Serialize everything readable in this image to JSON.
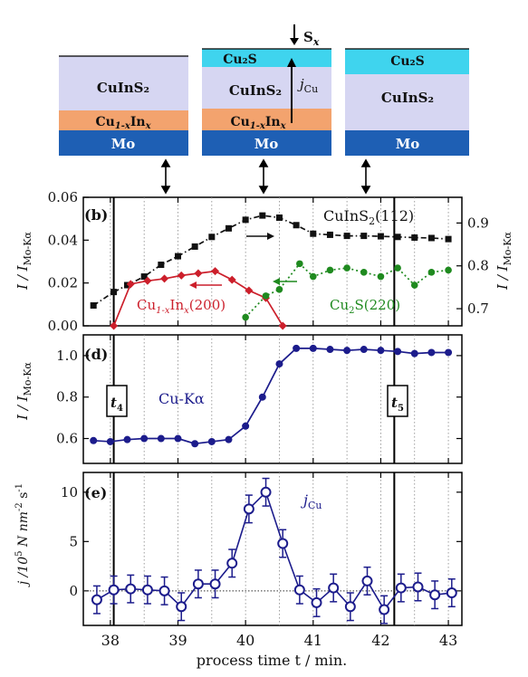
{
  "colors": {
    "cis_bg": "#d6d6f2",
    "cuin_bg": "#f3a36e",
    "cu2s_bg": "#3fd4ee",
    "mo_bg": "#1e5fb4",
    "cis_series": "#111111",
    "cuin_series": "#cc1f2b",
    "cu2s_series": "#1f8a1f",
    "cuka_series": "#1c1c8c",
    "jcu_series": "#1c1c8c",
    "event_line": "#000000",
    "grid": "#888888"
  },
  "schematic": {
    "stack1": {
      "cis": "CuInS₂",
      "cuin_pre": "Cu",
      "cuin_sub": "1-x",
      "cuin_mid": "In",
      "cuin_sub2": "x",
      "mo": "Mo"
    },
    "stack2": {
      "cu2s": "Cu₂S",
      "cis": "CuInS₂",
      "cuin_pre": "Cu",
      "cuin_sub": "1-x",
      "cuin_mid": "In",
      "cuin_sub2": "x",
      "mo": "Mo",
      "sx_pre": "S",
      "sx_sub": "x",
      "jcu_pre": "j",
      "jcu_sub": "Cu"
    },
    "stack3": {
      "cu2s": "Cu₂S",
      "cis": "CuInS₂",
      "mo": "Mo"
    }
  },
  "events": {
    "t4_pre": "t",
    "t4_sub": "4",
    "t5_pre": "t",
    "t5_sub": "5"
  },
  "chart_data": [
    {
      "panel": "b",
      "panel_label": "(b)",
      "type": "line",
      "ylabel_pre": "I / I",
      "ylabel_sub": "Mo-Kα",
      "ylabel_right_pre": "I / I",
      "ylabel_right_sub": "Mo-Kα",
      "xlim": [
        37.6,
        43.2
      ],
      "ylim_left": [
        0,
        0.06
      ],
      "yticks_left": [
        "0.00",
        "0.02",
        "0.04",
        "0.06"
      ],
      "ylim_right": [
        0.66,
        0.96
      ],
      "yticks_right": [
        "0.7",
        "0.8",
        "0.9"
      ],
      "series": [
        {
          "name": "CuInS₂(112)",
          "axis": "left",
          "style": "dash-dot",
          "x": [
            37.75,
            38.05,
            38.25,
            38.5,
            38.75,
            39.0,
            39.25,
            39.5,
            39.75,
            40.0,
            40.25,
            40.5,
            40.75,
            41.0,
            41.25,
            41.5,
            41.75,
            42.0,
            42.25,
            42.5,
            42.75,
            43.0
          ],
          "y": [
            0.0095,
            0.0158,
            0.019,
            0.023,
            0.0285,
            0.0325,
            0.037,
            0.0415,
            0.0455,
            0.0495,
            0.0515,
            0.0505,
            0.047,
            0.043,
            0.0425,
            0.042,
            0.042,
            0.0418,
            0.0415,
            0.0412,
            0.041,
            0.0405
          ]
        },
        {
          "name": "Cu1-xInx(200)",
          "axis": "left",
          "style": "solid",
          "x": [
            38.05,
            38.3,
            38.55,
            38.8,
            39.05,
            39.3,
            39.55,
            39.8,
            40.05,
            40.3,
            40.55
          ],
          "y": [
            0.0,
            0.0195,
            0.021,
            0.022,
            0.0235,
            0.0245,
            0.0255,
            0.0215,
            0.0165,
            0.013,
            0.0
          ]
        },
        {
          "name": "Cu2S(220)",
          "axis": "right",
          "style": "dotted",
          "x": [
            40.0,
            40.3,
            40.5,
            40.8,
            41.0,
            41.25,
            41.5,
            41.75,
            42.0,
            42.25,
            42.5,
            42.75,
            43.0
          ],
          "y": [
            0.68,
            0.73,
            0.745,
            0.805,
            0.775,
            0.79,
            0.795,
            0.785,
            0.775,
            0.795,
            0.755,
            0.785,
            0.79
          ]
        }
      ],
      "labels": {
        "cis_pre": "CuInS",
        "cis_sub": "2",
        "cis_post": "(112)",
        "cuin_pre": "Cu",
        "cuin_sub": "1-x",
        "cuin_mid": "In",
        "cuin_sub2": "x",
        "cuin_post": "(200)",
        "cu2s_pre": "Cu",
        "cu2s_sub": "2",
        "cu2s_post": "S(220)"
      }
    },
    {
      "panel": "d",
      "panel_label": "(d)",
      "type": "line",
      "ylabel_pre": "I / I",
      "ylabel_sub": "Mo-Kα",
      "xlim": [
        37.6,
        43.2
      ],
      "ylim": [
        0.48,
        1.1
      ],
      "yticks": [
        "0.6",
        "0.8",
        "1.0"
      ],
      "series": [
        {
          "name": "Cu-Kα",
          "x": [
            37.75,
            38.0,
            38.25,
            38.5,
            38.75,
            39.0,
            39.25,
            39.5,
            39.75,
            40.0,
            40.25,
            40.5,
            40.75,
            41.0,
            41.25,
            41.5,
            41.75,
            42.0,
            42.25,
            42.5,
            42.75,
            43.0
          ],
          "y": [
            0.59,
            0.585,
            0.595,
            0.6,
            0.6,
            0.6,
            0.575,
            0.585,
            0.595,
            0.66,
            0.8,
            0.96,
            1.035,
            1.035,
            1.03,
            1.025,
            1.03,
            1.025,
            1.02,
            1.01,
            1.015,
            1.015
          ]
        }
      ],
      "labels": {
        "series_name": "Cu-Kα"
      }
    },
    {
      "panel": "e",
      "panel_label": "(e)",
      "type": "scatter",
      "ylabel_pre": "j /10",
      "ylabel_sup": "5",
      "ylabel_mid": " N nm",
      "ylabel_sup2": "-2",
      "ylabel_end": " s",
      "ylabel_sup3": "-1",
      "xlabel": "process time t / min.",
      "xlim": [
        37.6,
        43.2
      ],
      "xticks": [
        "38",
        "39",
        "40",
        "41",
        "42",
        "43"
      ],
      "ylim": [
        -3.5,
        12
      ],
      "yticks": [
        "0",
        "5",
        "10"
      ],
      "series": [
        {
          "name": "jCu",
          "x": [
            37.8,
            38.05,
            38.3,
            38.55,
            38.8,
            39.05,
            39.3,
            39.55,
            39.8,
            40.05,
            40.3,
            40.55,
            40.8,
            41.05,
            41.3,
            41.55,
            41.8,
            42.05,
            42.3,
            42.55,
            42.8,
            43.05
          ],
          "y": [
            -0.9,
            0.1,
            0.2,
            0.1,
            0.0,
            -1.6,
            0.7,
            0.7,
            2.8,
            8.3,
            10.0,
            4.8,
            0.1,
            -1.2,
            0.3,
            -1.6,
            1.0,
            -1.9,
            0.3,
            0.4,
            -0.4,
            -0.2
          ],
          "err": [
            1.4,
            1.4,
            1.4,
            1.4,
            1.4,
            1.4,
            1.4,
            1.4,
            1.4,
            1.4,
            1.4,
            1.4,
            1.4,
            1.4,
            1.4,
            1.4,
            1.4,
            1.4,
            1.4,
            1.4,
            1.4,
            1.4
          ]
        }
      ],
      "labels": {
        "series_pre": "j",
        "series_sub": "Cu"
      }
    }
  ]
}
